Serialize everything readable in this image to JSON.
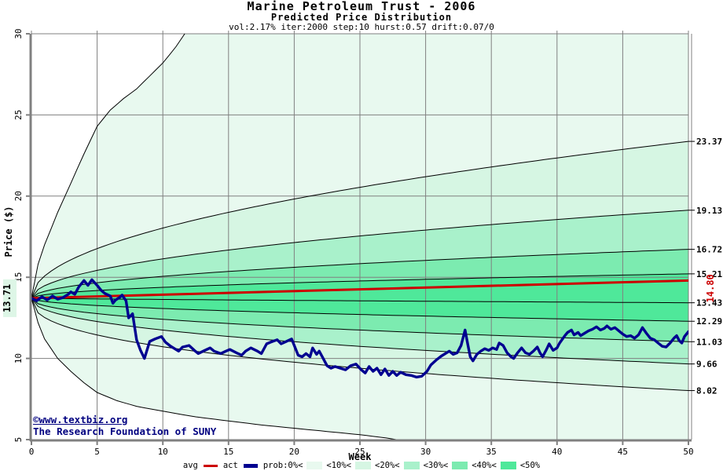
{
  "header": {
    "title": "Marine Petroleum Trust - 2006",
    "subtitle": "Predicted Price Distribution",
    "params": "vol:2.17% iter:2000 step:10 hurst:0.57 drift:0.07/0"
  },
  "watermark": {
    "line1": "©www.textbiz.org",
    "line2": "The Research Foundation of SUNY"
  },
  "legend": {
    "avg_label": "avg",
    "act_label": "act",
    "prob": [
      "prob:0%<",
      "<10%<",
      "<20%<",
      "<30%<",
      "<40%<",
      "<50%"
    ]
  },
  "colors": {
    "avg_line": "#cc0000",
    "act_line": "#000090",
    "grid": "#808080",
    "axis": "#808080",
    "boundary_line": "#000000",
    "navy_text": "#000080",
    "start_label_bg": "#ddf6e6"
  },
  "chart_data": {
    "type": "area",
    "subtype": "monte-carlo-fan",
    "title": "Marine Petroleum Trust - 2006",
    "xlabel": "Week",
    "ylabel": "Price ($)",
    "xlim": [
      0,
      50
    ],
    "ylim": [
      5,
      30
    ],
    "grid": true,
    "x_ticks": [
      0,
      5,
      10,
      15,
      20,
      25,
      30,
      35,
      40,
      45,
      50
    ],
    "x_tick_labels": [
      "0",
      "5",
      "10",
      "15",
      "20",
      "25",
      "30",
      "35",
      "40",
      "45",
      "50"
    ],
    "y_ticks": [
      30,
      25,
      20,
      15,
      10,
      5
    ],
    "y_tick_labels": [
      "30",
      "25",
      "20",
      "15",
      "10",
      "5"
    ],
    "start_price": 13.71,
    "start_label": "13.71",
    "avg_line": {
      "label": "avg",
      "start": 13.71,
      "end": 14.8,
      "end_label": "14.80",
      "color": "#cc0000"
    },
    "band_colors": [
      "#e8f9ef",
      "#d6f6e3",
      "#a9f1cb",
      "#7cebb0",
      "#4fe89a"
    ],
    "band_fill_order": [
      0,
      1,
      2,
      3,
      4,
      4,
      3,
      2,
      1,
      0
    ],
    "boundaries": [
      {
        "name": "max-0pct-upper",
        "shape": "points",
        "end_label": "",
        "points": [
          [
            0,
            13.71
          ],
          [
            0.5,
            15.8
          ],
          [
            1,
            17.0
          ],
          [
            2,
            19.0
          ],
          [
            3,
            20.8
          ],
          [
            4,
            22.6
          ],
          [
            5,
            24.3
          ],
          [
            6,
            25.3
          ],
          [
            7,
            26.0
          ],
          [
            8,
            26.6
          ],
          [
            9,
            27.4
          ],
          [
            10,
            28.2
          ],
          [
            11,
            29.2
          ],
          [
            12,
            30.4
          ],
          [
            13,
            31.5
          ]
        ]
      },
      {
        "name": "10pct-upper",
        "shape": "power",
        "end": 23.37,
        "k": 0.5,
        "end_label": "23.37"
      },
      {
        "name": "20pct-upper",
        "shape": "power",
        "end": 19.13,
        "k": 0.5,
        "end_label": "19.13"
      },
      {
        "name": "30pct-upper",
        "shape": "power",
        "end": 16.72,
        "k": 0.5,
        "end_label": "16.72"
      },
      {
        "name": "40pct-upper",
        "shape": "power",
        "end": 15.21,
        "k": 0.5,
        "end_label": "15.21"
      },
      {
        "name": "median-50pct",
        "shape": "power",
        "end": 13.43,
        "k": 0.8,
        "end_label": "13.43"
      },
      {
        "name": "40pct-lower",
        "shape": "power",
        "end": 12.29,
        "k": 0.5,
        "end_label": "12.29"
      },
      {
        "name": "30pct-lower",
        "shape": "power",
        "end": 11.03,
        "k": 0.45,
        "end_label": "11.03"
      },
      {
        "name": "20pct-lower",
        "shape": "power",
        "end": 9.66,
        "k": 0.45,
        "end_label": "9.66"
      },
      {
        "name": "10pct-lower",
        "shape": "power",
        "end": 8.02,
        "k": 0.4,
        "end_label": "8.02"
      },
      {
        "name": "min-0pct-lower",
        "shape": "points",
        "end_label": "",
        "points": [
          [
            0,
            13.71
          ],
          [
            0.5,
            12.2
          ],
          [
            1,
            11.2
          ],
          [
            2,
            10.0
          ],
          [
            3,
            9.2
          ],
          [
            4,
            8.5
          ],
          [
            5,
            7.9
          ],
          [
            6.5,
            7.4
          ],
          [
            8,
            7.05
          ],
          [
            10,
            6.75
          ],
          [
            12.5,
            6.4
          ],
          [
            15,
            6.15
          ],
          [
            17.5,
            5.9
          ],
          [
            20,
            5.7
          ],
          [
            22.5,
            5.5
          ],
          [
            25,
            5.3
          ],
          [
            27,
            5.1
          ],
          [
            28.5,
            4.9
          ],
          [
            30,
            4.75
          ]
        ]
      }
    ],
    "actual": {
      "label": "act",
      "color": "#000090",
      "points": [
        [
          0,
          13.71
        ],
        [
          0.4,
          13.55
        ],
        [
          0.8,
          13.8
        ],
        [
          1.2,
          13.6
        ],
        [
          1.6,
          13.85
        ],
        [
          2,
          13.65
        ],
        [
          2.4,
          13.75
        ],
        [
          2.8,
          13.95
        ],
        [
          3,
          14.1
        ],
        [
          3.3,
          13.95
        ],
        [
          3.6,
          14.4
        ],
        [
          4,
          14.8
        ],
        [
          4.3,
          14.5
        ],
        [
          4.6,
          14.85
        ],
        [
          5,
          14.5
        ],
        [
          5.3,
          14.2
        ],
        [
          5.6,
          14.0
        ],
        [
          6,
          13.85
        ],
        [
          6.2,
          13.4
        ],
        [
          6.4,
          13.6
        ],
        [
          6.7,
          13.75
        ],
        [
          6.9,
          13.9
        ],
        [
          7.2,
          13.55
        ],
        [
          7.4,
          12.5
        ],
        [
          7.7,
          12.75
        ],
        [
          8,
          11.15
        ],
        [
          8.3,
          10.5
        ],
        [
          8.6,
          10.0
        ],
        [
          9,
          11.05
        ],
        [
          9.4,
          11.2
        ],
        [
          9.9,
          11.35
        ],
        [
          10.2,
          11.0
        ],
        [
          10.6,
          10.75
        ],
        [
          11.2,
          10.45
        ],
        [
          11.5,
          10.7
        ],
        [
          12,
          10.8
        ],
        [
          12.4,
          10.5
        ],
        [
          12.7,
          10.3
        ],
        [
          13.2,
          10.5
        ],
        [
          13.6,
          10.65
        ],
        [
          13.9,
          10.45
        ],
        [
          14.4,
          10.3
        ],
        [
          14.8,
          10.45
        ],
        [
          15.1,
          10.55
        ],
        [
          15.6,
          10.35
        ],
        [
          16,
          10.2
        ],
        [
          16.3,
          10.45
        ],
        [
          16.7,
          10.65
        ],
        [
          17.2,
          10.45
        ],
        [
          17.5,
          10.3
        ],
        [
          17.9,
          10.9
        ],
        [
          18.2,
          11.0
        ],
        [
          18.7,
          11.15
        ],
        [
          19,
          10.9
        ],
        [
          19.4,
          11.05
        ],
        [
          19.8,
          11.2
        ],
        [
          20.1,
          10.6
        ],
        [
          20.3,
          10.2
        ],
        [
          20.6,
          10.1
        ],
        [
          20.9,
          10.3
        ],
        [
          21.2,
          10.1
        ],
        [
          21.4,
          10.65
        ],
        [
          21.7,
          10.25
        ],
        [
          21.9,
          10.45
        ],
        [
          22.2,
          10.0
        ],
        [
          22.5,
          9.55
        ],
        [
          22.8,
          9.4
        ],
        [
          23.1,
          9.5
        ],
        [
          23.5,
          9.4
        ],
        [
          23.9,
          9.3
        ],
        [
          24.3,
          9.55
        ],
        [
          24.7,
          9.65
        ],
        [
          25.1,
          9.3
        ],
        [
          25.4,
          9.1
        ],
        [
          25.7,
          9.5
        ],
        [
          26,
          9.2
        ],
        [
          26.3,
          9.4
        ],
        [
          26.6,
          9.0
        ],
        [
          26.9,
          9.35
        ],
        [
          27.2,
          8.95
        ],
        [
          27.5,
          9.2
        ],
        [
          27.8,
          8.95
        ],
        [
          28.1,
          9.15
        ],
        [
          28.5,
          9.0
        ],
        [
          28.9,
          8.95
        ],
        [
          29.3,
          8.85
        ],
        [
          29.7,
          8.9
        ],
        [
          30.1,
          9.2
        ],
        [
          30.4,
          9.6
        ],
        [
          30.8,
          9.9
        ],
        [
          31.2,
          10.15
        ],
        [
          31.5,
          10.3
        ],
        [
          31.8,
          10.45
        ],
        [
          32.1,
          10.25
        ],
        [
          32.4,
          10.35
        ],
        [
          32.7,
          10.8
        ],
        [
          33,
          11.75
        ],
        [
          33.2,
          10.9
        ],
        [
          33.4,
          10.1
        ],
        [
          33.6,
          9.85
        ],
        [
          33.9,
          10.25
        ],
        [
          34.2,
          10.45
        ],
        [
          34.5,
          10.6
        ],
        [
          34.8,
          10.5
        ],
        [
          35.1,
          10.65
        ],
        [
          35.4,
          10.55
        ],
        [
          35.6,
          10.95
        ],
        [
          35.9,
          10.8
        ],
        [
          36.2,
          10.35
        ],
        [
          36.5,
          10.1
        ],
        [
          36.7,
          10.0
        ],
        [
          37,
          10.35
        ],
        [
          37.3,
          10.65
        ],
        [
          37.6,
          10.35
        ],
        [
          37.9,
          10.25
        ],
        [
          38.2,
          10.45
        ],
        [
          38.5,
          10.7
        ],
        [
          38.7,
          10.35
        ],
        [
          38.9,
          10.1
        ],
        [
          39.2,
          10.55
        ],
        [
          39.4,
          10.9
        ],
        [
          39.7,
          10.5
        ],
        [
          40,
          10.65
        ],
        [
          40.2,
          10.95
        ],
        [
          40.6,
          11.4
        ],
        [
          40.8,
          11.6
        ],
        [
          41.1,
          11.75
        ],
        [
          41.3,
          11.45
        ],
        [
          41.6,
          11.6
        ],
        [
          41.8,
          11.4
        ],
        [
          42.1,
          11.55
        ],
        [
          42.4,
          11.7
        ],
        [
          42.7,
          11.8
        ],
        [
          43,
          11.95
        ],
        [
          43.3,
          11.75
        ],
        [
          43.6,
          11.85
        ],
        [
          43.8,
          12.0
        ],
        [
          44.1,
          11.8
        ],
        [
          44.4,
          11.9
        ],
        [
          44.7,
          11.7
        ],
        [
          45,
          11.5
        ],
        [
          45.3,
          11.35
        ],
        [
          45.6,
          11.4
        ],
        [
          45.9,
          11.25
        ],
        [
          46.2,
          11.45
        ],
        [
          46.5,
          11.9
        ],
        [
          46.8,
          11.55
        ],
        [
          47.1,
          11.25
        ],
        [
          47.4,
          11.15
        ],
        [
          47.7,
          10.95
        ],
        [
          48,
          10.75
        ],
        [
          48.3,
          10.7
        ],
        [
          48.6,
          10.95
        ],
        [
          48.9,
          11.25
        ],
        [
          49.1,
          11.4
        ],
        [
          49.3,
          11.1
        ],
        [
          49.5,
          10.95
        ],
        [
          49.7,
          11.35
        ],
        [
          50,
          11.65
        ]
      ]
    }
  }
}
